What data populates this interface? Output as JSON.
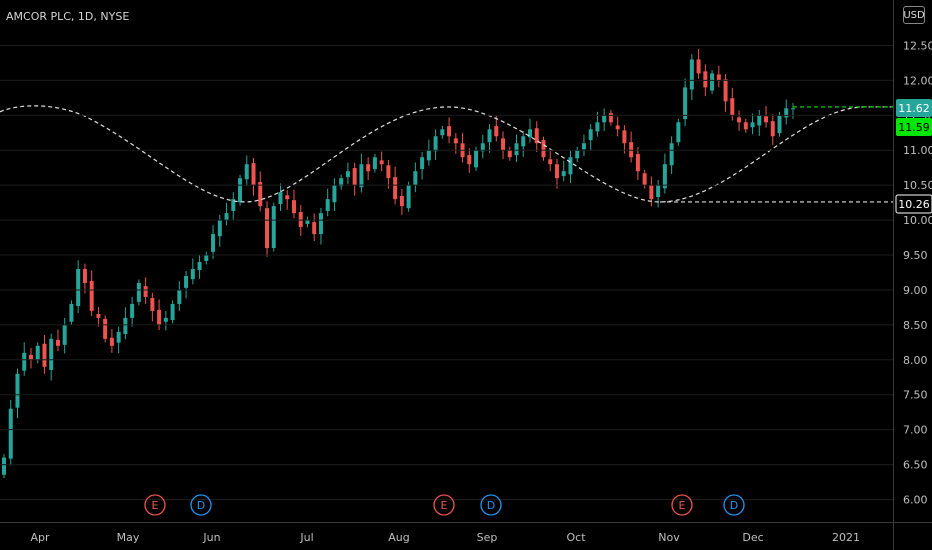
{
  "header": {
    "title": "AMCOR PLC, 1D, NYSE",
    "currency": "USD"
  },
  "chart_data": {
    "type": "candlestick",
    "title": "AMCOR PLC, 1D, NYSE",
    "x_ticks": [
      "Apr",
      "May",
      "Jun",
      "Jul",
      "Aug",
      "Sep",
      "Oct",
      "Nov",
      "Dec",
      "2021"
    ],
    "y_ticks": [
      "12.50",
      "12.00",
      "11.50",
      "11.00",
      "10.50",
      "10.00",
      "9.50",
      "9.00",
      "8.50",
      "8.00",
      "7.50",
      "7.00",
      "6.50",
      "6.00"
    ],
    "ylim": [
      5.85,
      12.75
    ],
    "price_labels": [
      {
        "name": "last-price-label",
        "value": "11.62",
        "color": "#26a69a"
      },
      {
        "name": "current-price-label",
        "value": "11.59",
        "color": "#00e600"
      },
      {
        "name": "support-level-label",
        "value": "10.26",
        "color": "#ffffff"
      }
    ],
    "support_level": 10.26,
    "resistance_level": 11.62,
    "events": [
      {
        "type": "earnings",
        "label": "E",
        "date": "May",
        "color": "#ef5350"
      },
      {
        "type": "dividend",
        "label": "D",
        "date": "Jun",
        "color": "#2196f3"
      },
      {
        "type": "earnings",
        "label": "E",
        "date": "Aug",
        "color": "#ef5350"
      },
      {
        "type": "dividend",
        "label": "D",
        "date": "Sep",
        "color": "#2196f3"
      },
      {
        "type": "earnings",
        "label": "E",
        "date": "Nov",
        "color": "#ef5350"
      },
      {
        "type": "dividend",
        "label": "D",
        "date": "Nov",
        "color": "#2196f3"
      }
    ],
    "series": [
      {
        "values": [
          6.6,
          7.3,
          7.8,
          8.1,
          8.0,
          8.2,
          7.9,
          8.3,
          8.2,
          8.5,
          8.8,
          9.3,
          9.1,
          8.7,
          8.6,
          8.3,
          8.2,
          8.4,
          8.6,
          8.8,
          9.1,
          8.9,
          8.7,
          8.5,
          8.6,
          8.8,
          9.0,
          9.2,
          9.3,
          9.4,
          9.5,
          9.8,
          10.0,
          10.1,
          10.3,
          10.6,
          10.8,
          10.5,
          10.2,
          9.6,
          10.2,
          10.4,
          10.3,
          10.1,
          9.9,
          10.0,
          9.8,
          10.1,
          10.3,
          10.5,
          10.6,
          10.7,
          10.5,
          10.8,
          10.7,
          10.9,
          10.8,
          10.6,
          10.3,
          10.2,
          10.5,
          10.7,
          10.9,
          11.0,
          11.2,
          11.3,
          11.2,
          11.1,
          10.9,
          10.8,
          11.0,
          11.1,
          11.3,
          11.2,
          11.0,
          10.9,
          11.1,
          11.2,
          11.3,
          11.1,
          10.9,
          10.8,
          10.6,
          10.7,
          10.9,
          11.0,
          11.1,
          11.3,
          11.4,
          11.5,
          11.4,
          11.3,
          11.1,
          10.9,
          10.7,
          10.5,
          10.3,
          10.5,
          10.8,
          11.1,
          11.4,
          11.9,
          12.3,
          12.1,
          11.9,
          12.1,
          12.0,
          11.7,
          11.5,
          11.4,
          11.3,
          11.4,
          11.5,
          11.4,
          11.2,
          11.5,
          11.6,
          11.6
        ]
      }
    ]
  },
  "colors": {
    "up": "#26a69a",
    "down": "#ef5350",
    "grid": "#1c1c1c",
    "axis_text": "#bfbfbf",
    "dashed_white": "#e0e0e0",
    "dashed_green": "#00e600"
  }
}
